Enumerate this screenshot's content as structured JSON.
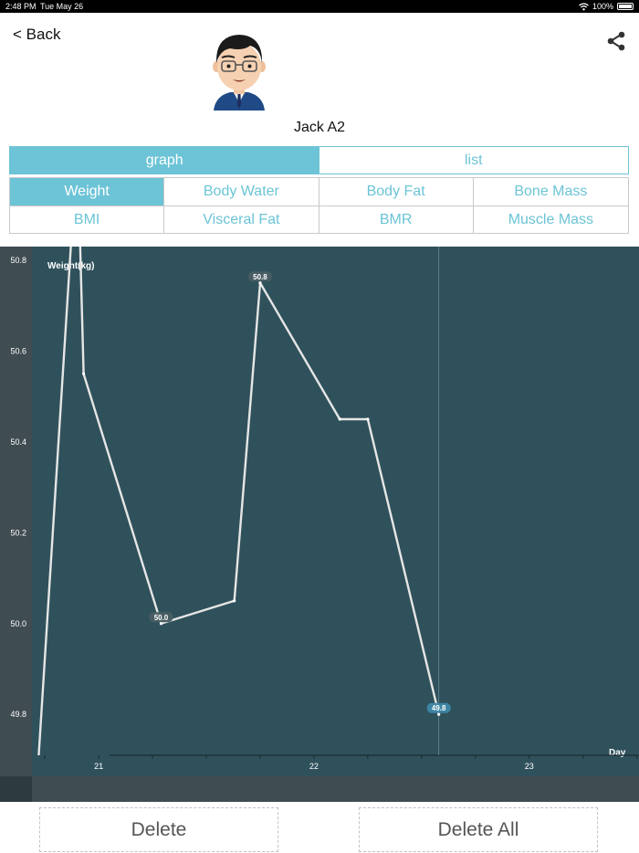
{
  "status_bar": {
    "time": "2:48 PM",
    "date": "Tue May 26",
    "battery": "100%"
  },
  "header": {
    "back_label": "< Back",
    "user_name": "Jack A2"
  },
  "view_toggle": {
    "graph_label": "graph",
    "list_label": "list",
    "selected": "graph"
  },
  "metrics": {
    "items": [
      "Weight",
      "Body Water",
      "Body Fat",
      "Bone Mass",
      "BMI",
      "Visceral Fat",
      "BMR",
      "Muscle Mass"
    ],
    "selected": "Weight"
  },
  "actions": {
    "delete_label": "Delete",
    "delete_all_label": "Delete All"
  },
  "colors": {
    "accent": "#6cc4d6",
    "chart_bg": "#2f515c",
    "chart_line": "#e6e6e6",
    "highlight_tag": "#3f87a8"
  },
  "chart_data": {
    "type": "line",
    "ylabel": "Weight(kg)",
    "xlabel": "Day",
    "y_ticks": [
      "50.8",
      "50.6",
      "50.4",
      "50.2",
      "50.0",
      "49.8"
    ],
    "x_ticks": [
      "21",
      "22",
      "23"
    ],
    "ylim": [
      49.71,
      50.83
    ],
    "xlim": [
      20.69,
      23.51
    ],
    "series": [
      {
        "x": [
          20.72,
          20.88,
          20.91,
          20.93,
          21.29,
          21.63,
          21.75,
          22.12,
          22.25,
          22.58
        ],
        "y": [
          49.7,
          50.9,
          50.9,
          50.55,
          50.0,
          50.05,
          50.75,
          50.45,
          50.45,
          49.8
        ]
      }
    ],
    "data_labels": [
      {
        "x": 21.29,
        "y": 50.0,
        "text": "50.0"
      },
      {
        "x": 21.75,
        "y": 50.75,
        "text": "50.8"
      },
      {
        "x": 22.58,
        "y": 49.8,
        "text": "49.8",
        "highlighted": true
      }
    ],
    "crosshair_x": 22.58
  }
}
